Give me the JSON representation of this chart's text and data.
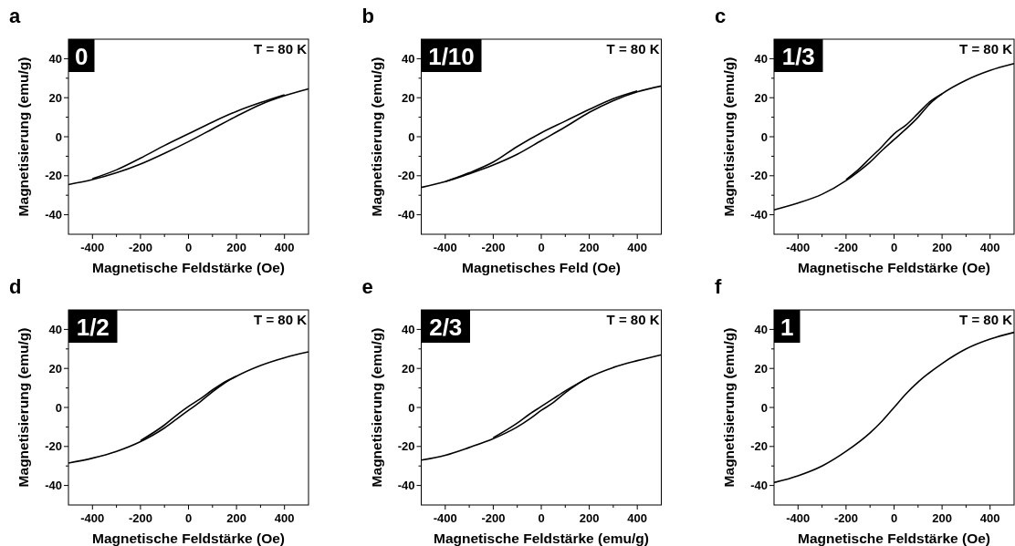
{
  "chart_data": [
    {
      "type": "line",
      "title": "a",
      "xlabel": "Magnetische Feldstärke (Oe)",
      "ylabel": "Magnetisierung (emu/g)",
      "annotations": [
        "0",
        "T = 80 K"
      ],
      "xlim": [
        -500,
        500
      ],
      "ylim": [
        -50,
        50
      ],
      "xticks": [
        -400,
        {
          "value": -300,
          "label": null
        },
        -200,
        {
          "value": -100,
          "label": null
        },
        0,
        {
          "value": 100,
          "label": null
        },
        200,
        {
          "value": 300,
          "label": null
        },
        400
      ],
      "yticks": [
        -40,
        {
          "value": -30,
          "label": null
        },
        -20,
        {
          "value": -10,
          "label": null
        },
        0,
        {
          "value": 10,
          "label": null
        },
        20,
        {
          "value": 30,
          "label": null
        },
        40
      ],
      "grid": false,
      "marker": "none",
      "line_style": "solid",
      "series": [
        {
          "color": "#000000",
          "x": [
            -500,
            -400,
            -300,
            -200,
            -100,
            0,
            100,
            200,
            300,
            400,
            500
          ],
          "values": [
            -24.5,
            -22,
            -18.5,
            -14,
            -8.5,
            -2.5,
            4,
            10.5,
            16.5,
            21,
            24.5
          ]
        },
        {
          "color": "#000000",
          "x": [
            -400,
            -300,
            -200,
            -100,
            0,
            100,
            200,
            300,
            400
          ],
          "values": [
            -21.5,
            -17,
            -11,
            -4.5,
            1.5,
            7.5,
            13,
            17.5,
            21.5
          ]
        }
      ]
    },
    {
      "type": "line",
      "title": "b",
      "xlabel": "Magnetisches Feld (Oe)",
      "ylabel": "Magnetisierung (emu/g)",
      "annotations": [
        "1/10",
        "T = 80 K"
      ],
      "xlim": [
        -500,
        500
      ],
      "ylim": [
        -50,
        50
      ],
      "xticks": [
        -400,
        {
          "value": -300,
          "label": null
        },
        -200,
        {
          "value": -100,
          "label": null
        },
        0,
        {
          "value": 100,
          "label": null
        },
        200,
        {
          "value": 300,
          "label": null
        },
        400
      ],
      "yticks": [
        -40,
        {
          "value": -30,
          "label": null
        },
        -20,
        {
          "value": -10,
          "label": null
        },
        0,
        {
          "value": 10,
          "label": null
        },
        20,
        {
          "value": 30,
          "label": null
        },
        40
      ],
      "grid": false,
      "marker": "none",
      "line_style": "solid",
      "series": [
        {
          "color": "#000000",
          "x": [
            -500,
            -400,
            -300,
            -200,
            -100,
            0,
            100,
            200,
            300,
            400,
            500
          ],
          "values": [
            -26,
            -23,
            -19,
            -14.5,
            -9,
            -2,
            5,
            12.5,
            18.5,
            23,
            26
          ]
        },
        {
          "color": "#000000",
          "x": [
            -400,
            -300,
            -200,
            -100,
            0,
            100,
            200,
            300,
            400
          ],
          "values": [
            -23,
            -18.5,
            -13,
            -5,
            2,
            8,
            14,
            19.5,
            23.5
          ]
        }
      ]
    },
    {
      "type": "line",
      "title": "c",
      "xlabel": "Magnetische Feldstärke (Oe)",
      "ylabel": "Magnetisierung (emu/g)",
      "annotations": [
        "1/3",
        "T = 80 K"
      ],
      "xlim": [
        -500,
        500
      ],
      "ylim": [
        -50,
        50
      ],
      "xticks": [
        -400,
        {
          "value": -300,
          "label": null
        },
        -200,
        {
          "value": -100,
          "label": null
        },
        0,
        {
          "value": 100,
          "label": null
        },
        200,
        {
          "value": 300,
          "label": null
        },
        400
      ],
      "yticks": [
        -40,
        {
          "value": -30,
          "label": null
        },
        -20,
        {
          "value": -10,
          "label": null
        },
        0,
        {
          "value": 10,
          "label": null
        },
        20,
        {
          "value": 30,
          "label": null
        },
        40
      ],
      "grid": false,
      "marker": "none",
      "line_style": "solid",
      "series": [
        {
          "color": "#000000",
          "x": [
            -500,
            -400,
            -300,
            -200,
            -150,
            -100,
            -50,
            0,
            50,
            100,
            150,
            200,
            300,
            400,
            500
          ],
          "values": [
            -37.5,
            -34,
            -29.5,
            -22.5,
            -18,
            -13,
            -7,
            -1.5,
            4,
            10,
            17,
            22,
            29,
            34,
            37.5
          ]
        },
        {
          "color": "#000000",
          "x": [
            -200,
            -150,
            -100,
            -50,
            0,
            50,
            100,
            150,
            200
          ],
          "values": [
            -22,
            -17,
            -11,
            -5,
            1.5,
            6,
            12,
            18,
            22
          ]
        }
      ]
    },
    {
      "type": "line",
      "title": "d",
      "xlabel": "Magnetische Feldstärke (Oe)",
      "ylabel": "Magnetisierung (emu/g)",
      "annotations": [
        "1/2",
        "T = 80 K"
      ],
      "xlim": [
        -500,
        500
      ],
      "ylim": [
        -50,
        50
      ],
      "xticks": [
        -400,
        {
          "value": -300,
          "label": null
        },
        -200,
        {
          "value": -100,
          "label": null
        },
        0,
        {
          "value": 100,
          "label": null
        },
        200,
        {
          "value": 300,
          "label": null
        },
        400
      ],
      "yticks": [
        -40,
        {
          "value": -30,
          "label": null
        },
        -20,
        {
          "value": -10,
          "label": null
        },
        0,
        {
          "value": 10,
          "label": null
        },
        20,
        {
          "value": 30,
          "label": null
        },
        40
      ],
      "grid": false,
      "marker": "none",
      "line_style": "solid",
      "series": [
        {
          "color": "#000000",
          "x": [
            -500,
            -400,
            -300,
            -200,
            -100,
            -50,
            0,
            50,
            100,
            150,
            200,
            300,
            400,
            500
          ],
          "values": [
            -28.5,
            -26,
            -22.5,
            -17.5,
            -10.5,
            -6,
            -1.5,
            3,
            8,
            12.5,
            16,
            21.5,
            25.5,
            28.5
          ]
        },
        {
          "color": "#000000",
          "x": [
            -200,
            -100,
            -50,
            0,
            50,
            100,
            150,
            200
          ],
          "values": [
            -17,
            -9,
            -4,
            0.5,
            4.5,
            9,
            13,
            16
          ]
        }
      ]
    },
    {
      "type": "line",
      "title": "e",
      "xlabel": "Magnetische Feldstärke (emu/g)",
      "ylabel": "Magnetisierung (emu/g)",
      "annotations": [
        "2/3",
        "T = 80 K"
      ],
      "xlim": [
        -500,
        500
      ],
      "ylim": [
        -50,
        50
      ],
      "xticks": [
        -400,
        {
          "value": -300,
          "label": null
        },
        -200,
        {
          "value": -100,
          "label": null
        },
        0,
        {
          "value": 100,
          "label": null
        },
        200,
        {
          "value": 300,
          "label": null
        },
        400
      ],
      "yticks": [
        -40,
        {
          "value": -30,
          "label": null
        },
        -20,
        {
          "value": -10,
          "label": null
        },
        0,
        {
          "value": 10,
          "label": null
        },
        20,
        {
          "value": 30,
          "label": null
        },
        40
      ],
      "grid": false,
      "marker": "none",
      "line_style": "solid",
      "series": [
        {
          "color": "#000000",
          "x": [
            -500,
            -400,
            -300,
            -200,
            -100,
            -50,
            0,
            50,
            100,
            200,
            300,
            400,
            500
          ],
          "values": [
            -27,
            -24.5,
            -20.5,
            -16,
            -10,
            -6,
            -1.5,
            2.5,
            7.5,
            15.5,
            20.5,
            24,
            27
          ]
        },
        {
          "color": "#000000",
          "x": [
            -200,
            -100,
            -50,
            0,
            50,
            100,
            200
          ],
          "values": [
            -15.5,
            -8,
            -3.5,
            0.5,
            4.5,
            8.5,
            15.5
          ]
        }
      ]
    },
    {
      "type": "line",
      "title": "f",
      "xlabel": "Magnetische Feldstärke (Oe)",
      "ylabel": "Magnetisierung (emu/g)",
      "annotations": [
        "1",
        "T = 80 K"
      ],
      "xlim": [
        -500,
        500
      ],
      "ylim": [
        -50,
        50
      ],
      "xticks": [
        -400,
        {
          "value": -300,
          "label": null
        },
        -200,
        {
          "value": -100,
          "label": null
        },
        0,
        {
          "value": 100,
          "label": null
        },
        200,
        {
          "value": 300,
          "label": null
        },
        400
      ],
      "yticks": [
        -40,
        {
          "value": -30,
          "label": null
        },
        -20,
        {
          "value": -10,
          "label": null
        },
        0,
        {
          "value": 10,
          "label": null
        },
        20,
        {
          "value": 30,
          "label": null
        },
        40
      ],
      "grid": false,
      "marker": "none",
      "line_style": "solid",
      "series": [
        {
          "color": "#000000",
          "x": [
            -500,
            -400,
            -300,
            -200,
            -100,
            -50,
            0,
            50,
            100,
            200,
            300,
            400,
            500
          ],
          "values": [
            -38.5,
            -35,
            -30,
            -22.5,
            -13,
            -7,
            0,
            7,
            13,
            22.5,
            30,
            35,
            38.5
          ]
        }
      ]
    }
  ]
}
